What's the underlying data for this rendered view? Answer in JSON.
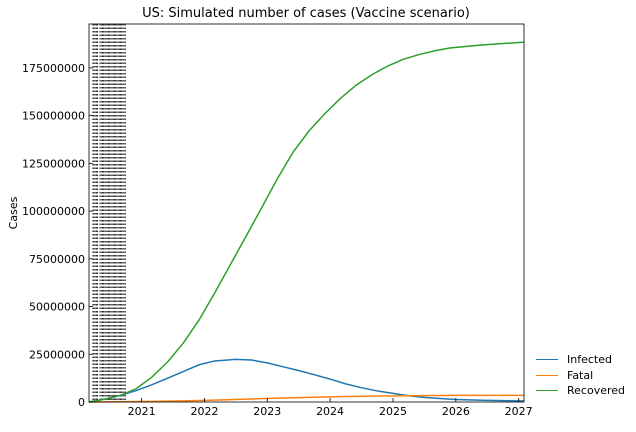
{
  "chart_data": {
    "type": "line",
    "title": "US: Simulated number of cases (Vaccine scenario)",
    "xlabel": "",
    "ylabel": "Cases",
    "x_ticks": [
      "2021",
      "2022",
      "2023",
      "2024",
      "2025",
      "2026",
      "2027"
    ],
    "y_ticks": [
      "0",
      "25000000",
      "50000000",
      "75000000",
      "100000000",
      "125000000",
      "150000000",
      "175000000"
    ],
    "xlim": [
      "2020-03-01",
      "2027-02-01"
    ],
    "ylim": [
      0,
      198000000
    ],
    "grid": false,
    "legend_position": "outside-lower-right",
    "vertical_lines_style": "dotted",
    "vertical_lines_x": [
      "2020-03-24",
      "2020-03-30",
      "2020-04-06",
      "2020-04-13",
      "2020-04-20",
      "2020-05-04",
      "2020-05-11",
      "2020-05-18",
      "2020-05-25",
      "2020-06-01",
      "2020-06-08",
      "2020-06-15",
      "2020-06-22",
      "2020-06-29",
      "2020-07-06",
      "2020-07-13",
      "2020-07-20",
      "2020-07-27",
      "2020-08-03",
      "2020-08-10",
      "2020-08-17",
      "2020-08-24",
      "2020-08-31",
      "2020-09-07",
      "2020-09-14",
      "2020-09-21",
      "2020-09-28"
    ],
    "series": [
      {
        "name": "Infected",
        "color": "#1f77b4",
        "points": [
          [
            "2020-03-01",
            0
          ],
          [
            "2020-06-01",
            1500000
          ],
          [
            "2020-09-01",
            3500000
          ],
          [
            "2020-12-01",
            6000000
          ],
          [
            "2021-03-01",
            9000000
          ],
          [
            "2021-06-01",
            12500000
          ],
          [
            "2021-09-01",
            16000000
          ],
          [
            "2021-12-01",
            19500000
          ],
          [
            "2022-03-01",
            21500000
          ],
          [
            "2022-07-01",
            22300000
          ],
          [
            "2022-10-01",
            22000000
          ],
          [
            "2023-01-01",
            20500000
          ],
          [
            "2023-04-01",
            18500000
          ],
          [
            "2023-07-01",
            16500000
          ],
          [
            "2023-10-01",
            14300000
          ],
          [
            "2024-01-01",
            12000000
          ],
          [
            "2024-04-01",
            9500000
          ],
          [
            "2024-07-01",
            7500000
          ],
          [
            "2024-10-01",
            5800000
          ],
          [
            "2025-01-01",
            4500000
          ],
          [
            "2025-04-01",
            3300000
          ],
          [
            "2025-07-01",
            2400000
          ],
          [
            "2025-10-01",
            1800000
          ],
          [
            "2026-01-01",
            1300000
          ],
          [
            "2026-06-01",
            900000
          ],
          [
            "2027-02-01",
            500000
          ]
        ]
      },
      {
        "name": "Fatal",
        "color": "#ff7f0e",
        "points": [
          [
            "2020-03-01",
            0
          ],
          [
            "2020-09-01",
            150000
          ],
          [
            "2021-03-01",
            300000
          ],
          [
            "2021-09-01",
            600000
          ],
          [
            "2022-03-01",
            1000000
          ],
          [
            "2022-09-01",
            1500000
          ],
          [
            "2023-03-01",
            2000000
          ],
          [
            "2023-09-01",
            2400000
          ],
          [
            "2024-03-01",
            2800000
          ],
          [
            "2024-09-01",
            3100000
          ],
          [
            "2025-03-01",
            3300000
          ],
          [
            "2025-09-01",
            3400000
          ],
          [
            "2026-03-01",
            3450000
          ],
          [
            "2027-02-01",
            3500000
          ]
        ]
      },
      {
        "name": "Recovered",
        "color": "#2ca02c",
        "points": [
          [
            "2020-03-01",
            0
          ],
          [
            "2020-06-01",
            1500000
          ],
          [
            "2020-09-01",
            3500000
          ],
          [
            "2020-12-01",
            7000000
          ],
          [
            "2021-03-01",
            13000000
          ],
          [
            "2021-06-01",
            21000000
          ],
          [
            "2021-09-01",
            31000000
          ],
          [
            "2021-12-01",
            43000000
          ],
          [
            "2022-03-01",
            57000000
          ],
          [
            "2022-06-01",
            72000000
          ],
          [
            "2022-09-01",
            87000000
          ],
          [
            "2022-12-01",
            102000000
          ],
          [
            "2023-03-01",
            117000000
          ],
          [
            "2023-06-01",
            131000000
          ],
          [
            "2023-09-01",
            142000000
          ],
          [
            "2023-12-01",
            151000000
          ],
          [
            "2024-03-01",
            159000000
          ],
          [
            "2024-06-01",
            166000000
          ],
          [
            "2024-09-01",
            171500000
          ],
          [
            "2024-12-01",
            176000000
          ],
          [
            "2025-03-01",
            179500000
          ],
          [
            "2025-06-01",
            182000000
          ],
          [
            "2025-09-01",
            184000000
          ],
          [
            "2025-12-01",
            185500000
          ],
          [
            "2026-06-01",
            187000000
          ],
          [
            "2027-02-01",
            188500000
          ]
        ]
      }
    ]
  }
}
